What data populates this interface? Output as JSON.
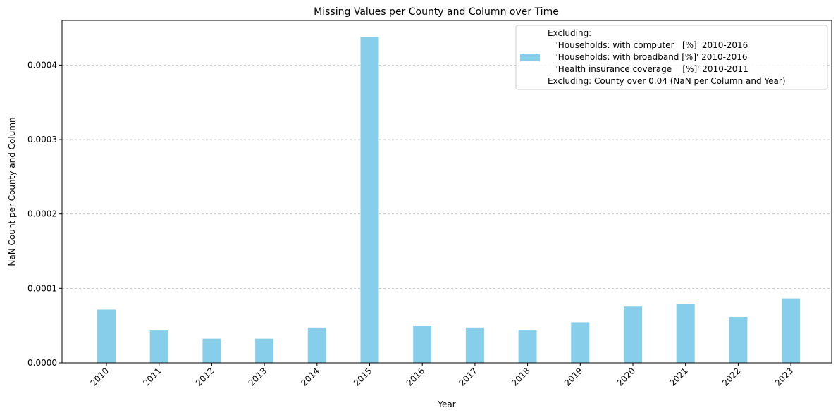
{
  "chart_data": {
    "type": "bar",
    "title": "Missing Values per County and Column over Time",
    "xlabel": "Year",
    "ylabel": "NaN Count per County and Column",
    "categories": [
      "2010",
      "2011",
      "2012",
      "2013",
      "2014",
      "2015",
      "2016",
      "2017",
      "2018",
      "2019",
      "2020",
      "2021",
      "2022",
      "2023"
    ],
    "values": [
      7.15e-05,
      4.35e-05,
      3.25e-05,
      3.25e-05,
      4.75e-05,
      0.000438,
      5e-05,
      4.75e-05,
      4.35e-05,
      5.45e-05,
      7.55e-05,
      7.95e-05,
      6.15e-05,
      8.65e-05
    ],
    "ylim": [
      0,
      0.00046
    ],
    "yticks": [
      0,
      0.0001,
      0.0002,
      0.0003,
      0.0004
    ],
    "ytick_labels": [
      "0.0000",
      "0.0001",
      "0.0002",
      "0.0003",
      "0.0004"
    ],
    "bar_color": "#87ceeb",
    "grid": "y-dashed",
    "legend": {
      "placement": "top-right",
      "lines": [
        "Excluding:",
        "   'Households: with computer   [%]' 2010-2016",
        "   'Households: with broadband [%]' 2010-2016",
        "   'Health insurance coverage    [%]' 2010-2011",
        "Excluding: County over 0.04 (NaN per Column and Year)"
      ]
    }
  }
}
